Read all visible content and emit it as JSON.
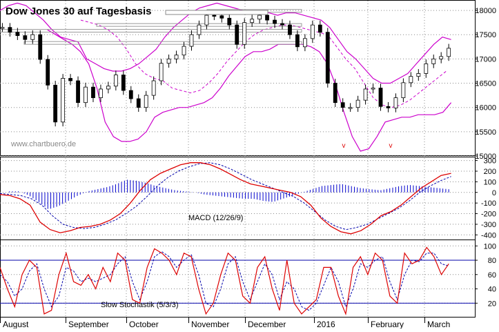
{
  "title": "Dow Jones 30 auf Tagesbasis",
  "watermark": "www.chartbuero.de",
  "months": [
    "August",
    "September",
    "October",
    "November",
    "December",
    "2016",
    "February",
    "March"
  ],
  "price_panel": {
    "y_ticks": [
      "18000",
      "17500",
      "17000",
      "16500",
      "16000",
      "15500",
      "15000"
    ],
    "markers": [
      "v",
      "v"
    ]
  },
  "macd_panel": {
    "label": "MACD (12/26/9)",
    "y_ticks": [
      "300",
      "200",
      "100",
      "0",
      "-100",
      "-200",
      "-300",
      "-400"
    ]
  },
  "stoch_panel": {
    "label": "Slow Stochastik (5/3/3)",
    "y_ticks": [
      "100",
      "80",
      "60",
      "40",
      "20"
    ]
  },
  "colors": {
    "candle": "#000000",
    "bollinger": "#cc00cc",
    "ma": "#cc00cc",
    "macd": "#dd0000",
    "signal": "#0000aa",
    "histogram": "#0000cc",
    "stoch_k": "#dd0000",
    "stoch_d": "#0000aa",
    "ref_lines": "#0000aa",
    "grid": "#888888"
  },
  "chart_data": [
    {
      "type": "candlestick",
      "title": "Dow Jones 30 auf Tagesbasis",
      "ylim": [
        15000,
        18200
      ],
      "y_ticks": [
        15000,
        15500,
        16000,
        16500,
        17000,
        17500,
        18000
      ],
      "months": [
        "August",
        "September",
        "October",
        "November",
        "December",
        "2016",
        "February",
        "March"
      ],
      "series": [
        {
          "name": "Close",
          "values": [
            17650,
            17550,
            17480,
            17400,
            17500,
            16990,
            16460,
            15700,
            16600,
            16550,
            16100,
            16420,
            16200,
            16380,
            16440,
            16670,
            16350,
            16180,
            16000,
            16250,
            16550,
            16910,
            17000,
            17080,
            17260,
            17500,
            17700,
            17900,
            17890,
            17840,
            17700,
            17300,
            17750,
            17820,
            17900,
            17800,
            17730,
            17700,
            17500,
            17250,
            17420,
            17700,
            17550,
            16500,
            16100,
            16000,
            16000,
            16150,
            16380,
            16400,
            16020,
            15990,
            16200,
            16510,
            16640,
            16700,
            16900,
            17000,
            17050,
            17220
          ]
        },
        {
          "name": "Bollinger upper",
          "values": [
            18000,
            18100,
            18150,
            18100,
            17950,
            17800,
            17600,
            17450,
            17400,
            17350,
            17000,
            16900,
            16800,
            16750,
            16750,
            16800,
            16900,
            17050,
            17200,
            17450,
            17650,
            17800,
            17950,
            18050,
            18100,
            18150,
            18100,
            18050,
            18000,
            18000,
            18000,
            17950,
            17900,
            17950,
            17950,
            17900,
            17850,
            17800,
            17650,
            17400,
            17150,
            17000,
            16800,
            16600,
            16500,
            16500,
            16600,
            16700,
            16900,
            17100,
            17300,
            17450,
            17400
          ]
        },
        {
          "name": "Bollinger lower",
          "values": [
            17600,
            17500,
            17400,
            17300,
            17150,
            16900,
            16400,
            15700,
            15400,
            15300,
            15300,
            15350,
            15500,
            15800,
            15900,
            15950,
            16000,
            16000,
            16050,
            16100,
            16200,
            16400,
            16650,
            16850,
            17050,
            17150,
            17150,
            17200,
            17300,
            17300,
            17300,
            17300,
            17250,
            17150,
            16900,
            16450,
            15900,
            15400,
            15100,
            15150,
            15400,
            15700,
            15750,
            15800,
            15800,
            15850,
            15850,
            15850,
            15900,
            16100
          ]
        },
        {
          "name": "MA",
          "values": [
            17800,
            17750,
            17700,
            17600,
            17450,
            17200,
            16900,
            16700,
            16600,
            16550,
            16400,
            16350,
            16300,
            16350,
            16500,
            16700,
            16950,
            17150,
            17350,
            17500,
            17600,
            17650,
            17700,
            17700,
            17650,
            17600,
            17550,
            17500,
            17250,
            17000,
            16800,
            16500,
            16200,
            16050,
            16000,
            16050,
            16150,
            16300,
            16450,
            16600,
            16750
          ]
        }
      ]
    },
    {
      "type": "line",
      "title": "MACD (12/26/9)",
      "ylim": [
        -450,
        330
      ],
      "y_ticks": [
        -400,
        -300,
        -200,
        -100,
        0,
        100,
        200,
        300
      ],
      "series": [
        {
          "name": "MACD",
          "values": [
            -20,
            -30,
            -60,
            -120,
            -280,
            -350,
            -380,
            -360,
            -330,
            -320,
            -300,
            -260,
            -200,
            -100,
            20,
            120,
            180,
            220,
            260,
            280,
            280,
            260,
            220,
            170,
            120,
            80,
            60,
            40,
            20,
            0,
            -40,
            -120,
            -240,
            -320,
            -370,
            -390,
            -360,
            -300,
            -220,
            -180,
            -120,
            -40,
            40,
            100,
            160,
            180
          ]
        },
        {
          "name": "Signal",
          "values": [
            -10,
            -20,
            -30,
            -60,
            -120,
            -220,
            -300,
            -330,
            -340,
            -330,
            -300,
            -260,
            -200,
            -130,
            -40,
            60,
            140,
            200,
            240,
            270,
            280,
            260,
            220,
            170,
            120,
            80,
            40,
            0,
            -40,
            -100,
            -180,
            -260,
            -320,
            -350,
            -330,
            -300,
            -250,
            -200,
            -150,
            -80,
            0,
            60,
            110,
            150
          ]
        },
        {
          "name": "Histogram",
          "values": [
            10,
            10,
            -30,
            -90,
            -160,
            -130,
            -80,
            -30,
            10,
            30,
            50,
            80,
            120,
            110,
            90,
            60,
            40,
            20,
            10,
            0,
            -20,
            -30,
            -40,
            -50,
            -60,
            -60,
            -80,
            -90,
            -60,
            -30,
            0,
            30,
            60,
            70,
            80,
            60,
            40,
            30,
            20,
            40,
            60,
            70,
            60,
            50,
            40,
            30
          ]
        }
      ]
    },
    {
      "type": "line",
      "title": "Slow Stochastik (5/3/3)",
      "ylim": [
        0,
        108
      ],
      "y_ticks": [
        20,
        40,
        60,
        80,
        100
      ],
      "reference_lines": [
        20,
        80
      ],
      "series": [
        {
          "name": "%K",
          "values": [
            70,
            40,
            15,
            60,
            80,
            70,
            5,
            10,
            60,
            90,
            50,
            45,
            60,
            40,
            70,
            50,
            90,
            80,
            25,
            20,
            70,
            96,
            90,
            80,
            60,
            90,
            85,
            40,
            5,
            20,
            60,
            90,
            80,
            30,
            20,
            70,
            85,
            40,
            10,
            80,
            20,
            5,
            15,
            25,
            70,
            70,
            30,
            5,
            70,
            85,
            60,
            90,
            80,
            30,
            20,
            90,
            75,
            80,
            98,
            85,
            60,
            75
          ]
        },
        {
          "name": "%D",
          "values": [
            60,
            50,
            30,
            40,
            65,
            75,
            40,
            15,
            30,
            70,
            65,
            50,
            55,
            50,
            55,
            60,
            75,
            85,
            50,
            25,
            50,
            85,
            92,
            85,
            70,
            80,
            88,
            60,
            20,
            15,
            40,
            75,
            85,
            50,
            25,
            50,
            75,
            60,
            25,
            50,
            40,
            15,
            10,
            20,
            45,
            70,
            50,
            15,
            40,
            75,
            70,
            80,
            85,
            50,
            25,
            60,
            80,
            78,
            90,
            90,
            75,
            72
          ]
        }
      ]
    }
  ]
}
